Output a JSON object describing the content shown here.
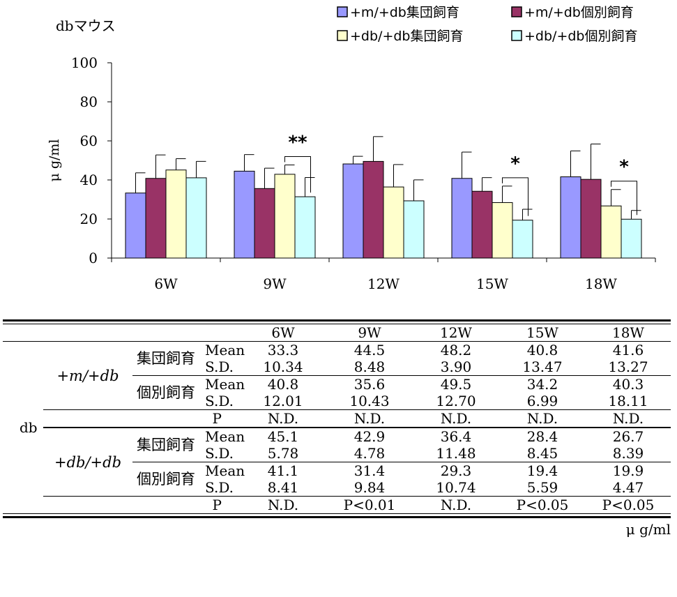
{
  "chart_data": {
    "type": "bar",
    "title": "dbマウス",
    "ylabel": "μ g/ml",
    "xlabel": "",
    "ylim": [
      0,
      100
    ],
    "yticks": [
      0,
      20,
      40,
      60,
      80,
      100
    ],
    "categories": [
      "6W",
      "9W",
      "12W",
      "15W",
      "18W"
    ],
    "legend_position": "top-right",
    "series": [
      {
        "name": "+m/+db集団飼育",
        "color": "#9999ff",
        "values": [
          33.3,
          44.5,
          48.2,
          40.8,
          41.6
        ],
        "sd": [
          10.34,
          8.48,
          3.9,
          13.47,
          13.27
        ]
      },
      {
        "name": "+m/+db個別飼育",
        "color": "#993366",
        "values": [
          40.8,
          35.6,
          49.5,
          34.2,
          40.3
        ],
        "sd": [
          12.01,
          10.43,
          12.7,
          6.99,
          18.11
        ]
      },
      {
        "name": "+db/+db集団飼育",
        "color": "#ffffcc",
        "values": [
          45.1,
          42.9,
          36.4,
          28.4,
          26.7
        ],
        "sd": [
          5.78,
          4.78,
          11.48,
          8.45,
          8.39
        ]
      },
      {
        "name": "+db/+db個別飼育",
        "color": "#ccffff",
        "values": [
          41.1,
          31.4,
          29.3,
          19.4,
          19.9
        ],
        "sd": [
          8.41,
          9.84,
          10.74,
          5.59,
          4.47
        ]
      }
    ],
    "significance": [
      {
        "category": "9W",
        "label": "**"
      },
      {
        "category": "15W",
        "label": "*"
      },
      {
        "category": "18W",
        "label": "*"
      }
    ]
  },
  "table": {
    "headers": [
      "6W",
      "9W",
      "12W",
      "15W",
      "18W"
    ],
    "row_label": "db",
    "groups": [
      {
        "genotype": "+m/+db",
        "housing": [
          {
            "name": "集団飼育",
            "mean_label": "Mean",
            "sd_label": "S.D.",
            "mean": [
              "33.3",
              "44.5",
              "48.2",
              "40.8",
              "41.6"
            ],
            "sd": [
              "10.34",
              "8.48",
              "3.90",
              "13.47",
              "13.27"
            ]
          },
          {
            "name": "個別飼育",
            "mean_label": "Mean",
            "sd_label": "S.D.",
            "mean": [
              "40.8",
              "35.6",
              "49.5",
              "34.2",
              "40.3"
            ],
            "sd": [
              "12.01",
              "10.43",
              "12.70",
              "6.99",
              "18.11"
            ]
          }
        ],
        "p_label": "P",
        "p": [
          "N.D.",
          "N.D.",
          "N.D.",
          "N.D.",
          "N.D."
        ]
      },
      {
        "genotype": "+db/+db",
        "housing": [
          {
            "name": "集団飼育",
            "mean_label": "Mean",
            "sd_label": "S.D.",
            "mean": [
              "45.1",
              "42.9",
              "36.4",
              "28.4",
              "26.7"
            ],
            "sd": [
              "5.78",
              "4.78",
              "11.48",
              "8.45",
              "8.39"
            ]
          },
          {
            "name": "個別飼育",
            "mean_label": "Mean",
            "sd_label": "S.D.",
            "mean": [
              "41.1",
              "31.4",
              "29.3",
              "19.4",
              "19.9"
            ],
            "sd": [
              "8.41",
              "9.84",
              "10.74",
              "5.59",
              "4.47"
            ]
          }
        ],
        "p_label": "P",
        "p": [
          "N.D.",
          "P<0.01",
          "N.D.",
          "P<0.05",
          "P<0.05"
        ]
      }
    ],
    "unit": "μ g/ml"
  }
}
